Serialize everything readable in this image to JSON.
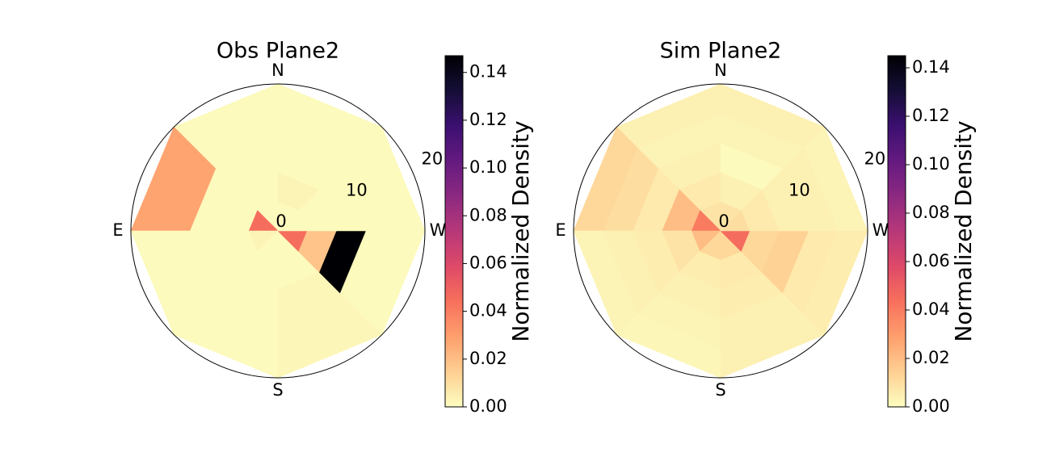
{
  "chart_data": [
    {
      "type": "polar_heatmap",
      "title": "Obs Plane2",
      "colorbar_label": "Normalized Density",
      "colormap": "magma_r",
      "theta_direction": "counterclockwise",
      "theta_zero": "N",
      "xticks": [
        {
          "value": 0,
          "label": "N"
        },
        {
          "value": 90,
          "label": "E"
        },
        {
          "value": 180,
          "label": "S"
        },
        {
          "value": 270,
          "label": "W"
        }
      ],
      "theta_edges": [
        0,
        45,
        90,
        135,
        180,
        225,
        270,
        315,
        360
      ],
      "r_edges": [
        0,
        3.6,
        7.2,
        10.8,
        14.4,
        18
      ],
      "rlim": [
        0,
        18
      ],
      "rticks": [
        0,
        10,
        20
      ],
      "values": [
        [
          0.001,
          0.001,
          0.001,
          0.001,
          0.001
        ],
        [
          0.045,
          0.001,
          0.001,
          0.028,
          0.028
        ],
        [
          0.003,
          0.001,
          0.001,
          0.001,
          0.001
        ],
        [
          0.001,
          0.001,
          0.001,
          0.001,
          0.001
        ],
        [
          0.001,
          0.001,
          0.002,
          0.002,
          0.002
        ],
        [
          0.045,
          0.018,
          0.147,
          0.001,
          0.001
        ],
        [
          0.001,
          0.001,
          0.001,
          0.001,
          0.001
        ],
        [
          0.001,
          0.003,
          0.001,
          0.001,
          0.001
        ]
      ],
      "clim": [
        0,
        0.147
      ],
      "cticks": [
        {
          "value": 0,
          "label": "0.00"
        },
        {
          "value": 0.02,
          "label": "0.02"
        },
        {
          "value": 0.04,
          "label": "0.04"
        },
        {
          "value": 0.06,
          "label": "0.06"
        },
        {
          "value": 0.08,
          "label": "0.08"
        },
        {
          "value": 0.1,
          "label": "0.10"
        },
        {
          "value": 0.12,
          "label": "0.12"
        },
        {
          "value": 0.14,
          "label": "0.14"
        }
      ]
    },
    {
      "type": "polar_heatmap",
      "title": "Sim Plane2",
      "colorbar_label": "Normalized Density",
      "colormap": "magma_r",
      "theta_direction": "counterclockwise",
      "theta_zero": "N",
      "xticks": [
        {
          "value": 0,
          "label": "N"
        },
        {
          "value": 90,
          "label": "E"
        },
        {
          "value": 180,
          "label": "S"
        },
        {
          "value": 270,
          "label": "W"
        }
      ],
      "theta_edges": [
        0,
        45,
        90,
        135,
        180,
        225,
        270,
        315,
        360
      ],
      "r_edges": [
        0,
        3.6,
        7.2,
        10.8,
        14.4,
        18
      ],
      "rlim": [
        0,
        18
      ],
      "rticks": [
        0,
        10,
        20
      ],
      "values": [
        [
          0.008,
          0.006,
          0.004,
          0.003,
          0.004
        ],
        [
          0.04,
          0.02,
          0.006,
          0.01,
          0.012
        ],
        [
          0.02,
          0.008,
          0.005,
          0.004,
          0.003
        ],
        [
          0.012,
          0.005,
          0.004,
          0.003,
          0.002
        ],
        [
          0.012,
          0.006,
          0.005,
          0.004,
          0.004
        ],
        [
          0.045,
          0.012,
          0.014,
          0.006,
          0.005
        ],
        [
          0.01,
          0.006,
          0.004,
          0.004,
          0.003
        ],
        [
          0.008,
          0.004,
          0.001,
          0.003,
          0.004
        ]
      ],
      "clim": [
        0,
        0.145
      ],
      "cticks": [
        {
          "value": 0,
          "label": "0.00"
        },
        {
          "value": 0.02,
          "label": "0.02"
        },
        {
          "value": 0.04,
          "label": "0.04"
        },
        {
          "value": 0.06,
          "label": "0.06"
        },
        {
          "value": 0.08,
          "label": "0.08"
        },
        {
          "value": 0.1,
          "label": "0.10"
        },
        {
          "value": 0.12,
          "label": "0.12"
        },
        {
          "value": 0.14,
          "label": "0.14"
        }
      ]
    }
  ]
}
